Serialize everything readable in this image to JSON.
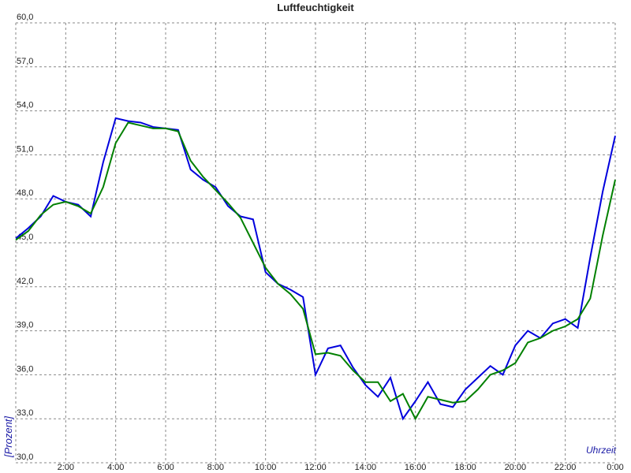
{
  "chart_data": {
    "type": "line",
    "title": "Luftfeuchtigkeit",
    "y_label": "[Prozent]",
    "x_label": "Uhrzeit",
    "x": [
      0,
      0.5,
      1,
      1.5,
      2,
      2.5,
      3,
      3.5,
      4,
      4.5,
      5,
      5.5,
      6,
      6.5,
      7,
      7.5,
      8,
      8.5,
      9,
      9.5,
      10,
      10.5,
      11,
      11.5,
      12,
      12.5,
      13,
      13.5,
      14,
      14.5,
      15,
      15.5,
      16,
      16.5,
      17,
      17.5,
      18,
      18.5,
      19,
      19.5,
      20,
      20.5,
      21,
      21.5,
      22,
      22.5,
      23,
      23.5,
      24
    ],
    "series": [
      {
        "color": "#0000dd",
        "values": [
          45.3,
          46.0,
          46.8,
          48.2,
          47.8,
          47.6,
          46.8,
          50.5,
          53.5,
          53.3,
          53.2,
          52.9,
          52.8,
          52.7,
          50.0,
          49.3,
          48.8,
          47.5,
          46.8,
          46.6,
          43.0,
          42.2,
          41.8,
          41.3,
          36.0,
          37.8,
          38.0,
          36.5,
          35.3,
          34.5,
          35.8,
          33.0,
          34.2,
          35.5,
          34.0,
          33.8,
          35.0,
          35.8,
          36.6,
          36.0,
          38.0,
          39.0,
          38.5,
          39.5,
          39.8,
          39.2,
          44.0,
          48.5,
          52.3
        ]
      },
      {
        "color": "#008000",
        "values": [
          45.2,
          45.8,
          46.9,
          47.6,
          47.8,
          47.5,
          47.0,
          48.8,
          51.8,
          53.2,
          53.0,
          52.8,
          52.8,
          52.6,
          50.6,
          49.5,
          48.6,
          47.7,
          46.7,
          45.0,
          43.3,
          42.2,
          41.5,
          40.5,
          37.4,
          37.5,
          37.3,
          36.3,
          35.5,
          35.5,
          34.2,
          34.7,
          33.0,
          34.5,
          34.3,
          34.1,
          34.2,
          35.0,
          36.0,
          36.3,
          36.8,
          38.2,
          38.5,
          39.0,
          39.3,
          39.8,
          41.2,
          45.5,
          49.3
        ]
      }
    ],
    "xlim": [
      0,
      24
    ],
    "xticks": [
      {
        "value": 2,
        "label": "2:00"
      },
      {
        "value": 4,
        "label": "4:00"
      },
      {
        "value": 6,
        "label": "6:00"
      },
      {
        "value": 8,
        "label": "8:00"
      },
      {
        "value": 10,
        "label": "10:00"
      },
      {
        "value": 12,
        "label": "12:00"
      },
      {
        "value": 14,
        "label": "14:00"
      },
      {
        "value": 16,
        "label": "16:00"
      },
      {
        "value": 18,
        "label": "18:00"
      },
      {
        "value": 20,
        "label": "20:00"
      },
      {
        "value": 22,
        "label": "22:00"
      },
      {
        "value": 24,
        "label": "0:00"
      }
    ],
    "ylim": [
      30,
      60
    ],
    "yticks": [
      {
        "value": 30,
        "label": "30,0"
      },
      {
        "value": 33,
        "label": "33,0"
      },
      {
        "value": 36,
        "label": "36,0"
      },
      {
        "value": 39,
        "label": "39,0"
      },
      {
        "value": 42,
        "label": "42,0"
      },
      {
        "value": 45,
        "label": "45,0"
      },
      {
        "value": 48,
        "label": "48,0"
      },
      {
        "value": 51,
        "label": "51,0"
      },
      {
        "value": 54,
        "label": "54,0"
      },
      {
        "value": 57,
        "label": "57,0"
      },
      {
        "value": 60,
        "label": "60,0"
      }
    ],
    "grid": true
  }
}
